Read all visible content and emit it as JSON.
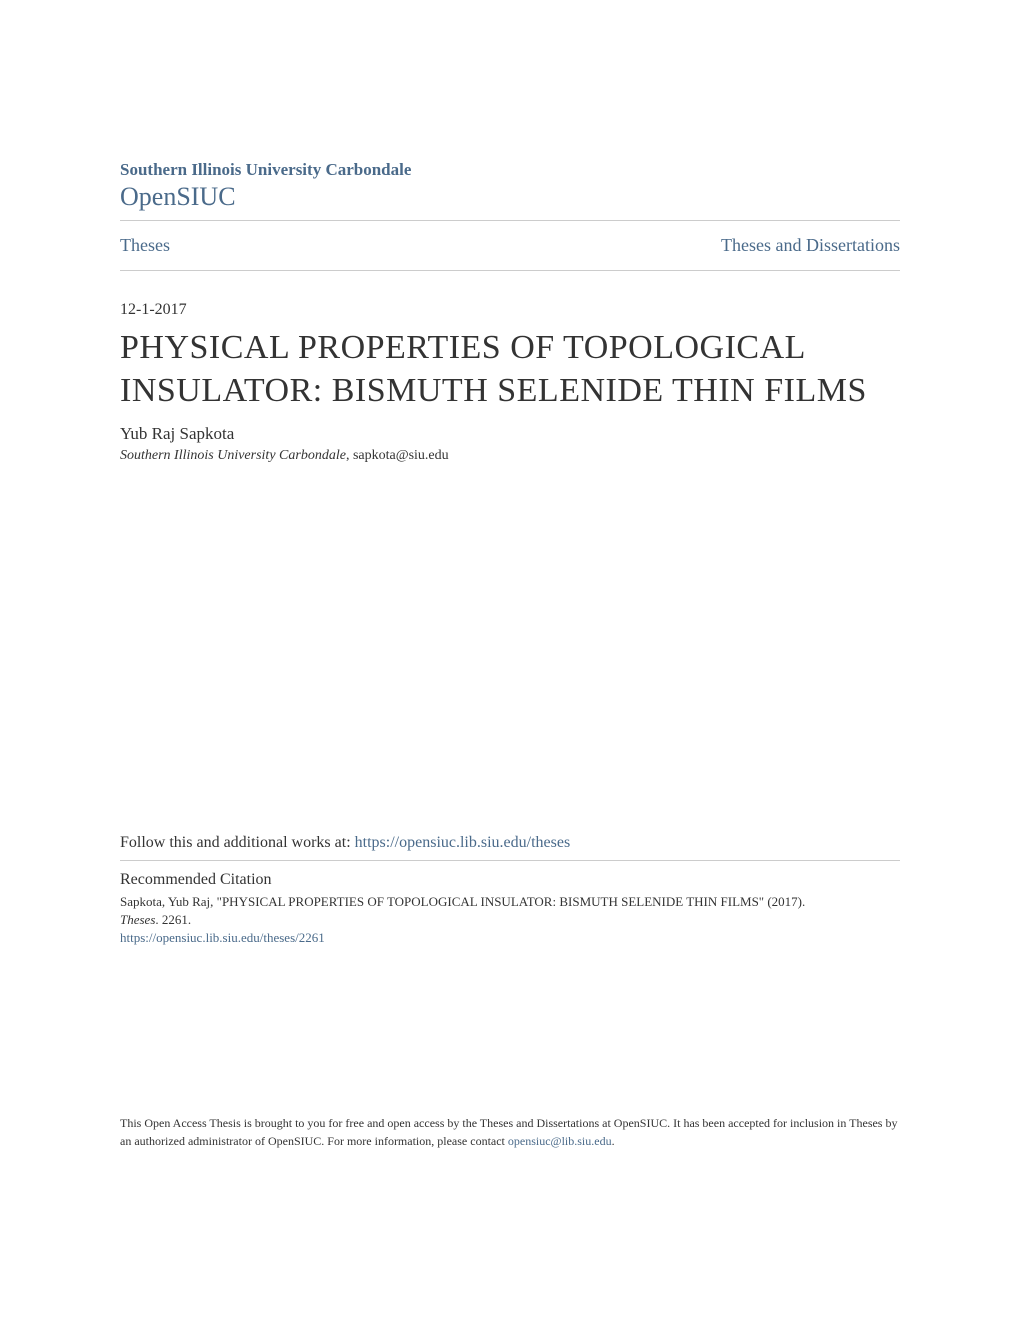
{
  "header": {
    "institution": "Southern Illinois University Carbondale",
    "repository": "OpenSIUC"
  },
  "nav": {
    "left_link": "Theses",
    "right_link": "Theses and Dissertations"
  },
  "document": {
    "date": "12-1-2017",
    "title": "PHYSICAL PROPERTIES OF TOPOLOGICAL INSULATOR: BISMUTH SELENIDE THIN FILMS",
    "author": "Yub Raj Sapkota",
    "affiliation_italic": "Southern Illinois University Carbondale",
    "email": ", sapkota@siu.edu"
  },
  "follow": {
    "prefix": "Follow this and additional works at: ",
    "url": "https://opensiuc.lib.siu.edu/theses"
  },
  "citation": {
    "heading": "Recommended Citation",
    "line1": "Sapkota, Yub Raj, \"PHYSICAL PROPERTIES OF TOPOLOGICAL INSULATOR: BISMUTH SELENIDE THIN FILMS\" (2017).",
    "line2_italic": "Theses",
    "line2_rest": ". 2261.",
    "url": "https://opensiuc.lib.siu.edu/theses/2261"
  },
  "footer": {
    "text_before": "This Open Access Thesis is brought to you for free and open access by the Theses and Dissertations at OpenSIUC. It has been accepted for inclusion in Theses by an authorized administrator of OpenSIUC. For more information, please contact ",
    "email": "opensiuc@lib.siu.edu",
    "text_after": "."
  },
  "colors": {
    "link_color": "#4a6a8a",
    "text_color": "#333333",
    "divider_color": "#cccccc",
    "background": "#ffffff"
  },
  "typography": {
    "institution_fontsize": 17,
    "repo_fontsize": 26,
    "nav_fontsize": 18,
    "title_fontsize": 34,
    "author_fontsize": 17,
    "affiliation_fontsize": 14,
    "follow_fontsize": 16,
    "citation_heading_fontsize": 16,
    "citation_text_fontsize": 13,
    "footer_fontsize": 12
  }
}
